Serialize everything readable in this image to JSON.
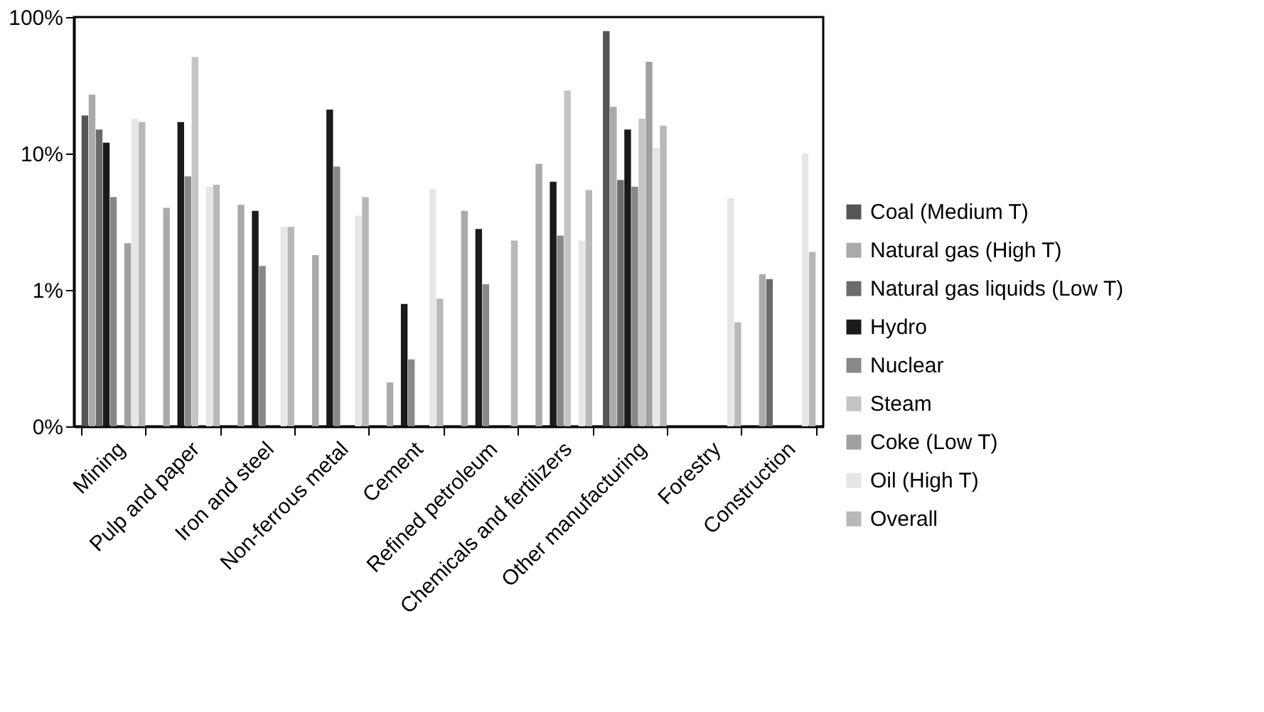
{
  "chart_data": {
    "type": "bar",
    "log": true,
    "grid": false,
    "legend": "right",
    "categories": [
      "Mining",
      "Pulp and paper",
      "Iron and steel",
      "Non-ferrous metal",
      "Cement",
      "Refined petroleum",
      "Chemicals and fertilizers",
      "Other manufacturing",
      "Forestry",
      "Construction"
    ],
    "ylim": [
      0.1,
      100
    ],
    "yticks": [
      {
        "value": 0.1,
        "label": "0%"
      },
      {
        "value": 1,
        "label": "1%"
      },
      {
        "value": 10,
        "label": "10%"
      },
      {
        "value": 100,
        "label": "100%"
      }
    ],
    "series": [
      {
        "name": "Coal (Medium T)",
        "color": "#555555",
        "values": [
          19,
          null,
          null,
          null,
          null,
          null,
          null,
          79,
          null,
          null
        ]
      },
      {
        "name": "Natural gas (High T)",
        "color": "#aaaaaa",
        "values": [
          27,
          4.0,
          4.2,
          1.8,
          0.21,
          3.8,
          8.4,
          22,
          null,
          1.3
        ]
      },
      {
        "name": "Natural gas liquids (Low T)",
        "color": "#6b6b6b",
        "values": [
          15,
          null,
          null,
          null,
          null,
          null,
          null,
          6.4,
          null,
          1.2
        ]
      },
      {
        "name": "Hydro",
        "color": "#1a1a1a",
        "values": [
          12,
          17,
          3.8,
          21,
          0.79,
          2.8,
          6.2,
          15,
          null,
          null
        ]
      },
      {
        "name": "Nuclear",
        "color": "#888888",
        "values": [
          4.8,
          6.8,
          1.5,
          8.0,
          0.31,
          1.1,
          2.5,
          5.7,
          null,
          null
        ]
      },
      {
        "name": "Steam",
        "color": "#c4c4c4",
        "values": [
          null,
          51,
          null,
          null,
          null,
          null,
          29,
          18,
          null,
          null
        ]
      },
      {
        "name": "Coke (Low T)",
        "color": "#a0a0a0",
        "values": [
          2.2,
          null,
          null,
          null,
          null,
          null,
          null,
          47,
          null,
          null
        ]
      },
      {
        "name": "Oil (High T)",
        "color": "#e6e6e6",
        "values": [
          18,
          5.7,
          2.9,
          3.5,
          5.5,
          null,
          2.3,
          11,
          4.7,
          10
        ]
      },
      {
        "name": "Overall",
        "color": "#b8b8b8",
        "values": [
          17,
          5.9,
          2.9,
          4.8,
          0.86,
          2.3,
          5.4,
          16,
          0.58,
          1.9
        ]
      }
    ]
  }
}
